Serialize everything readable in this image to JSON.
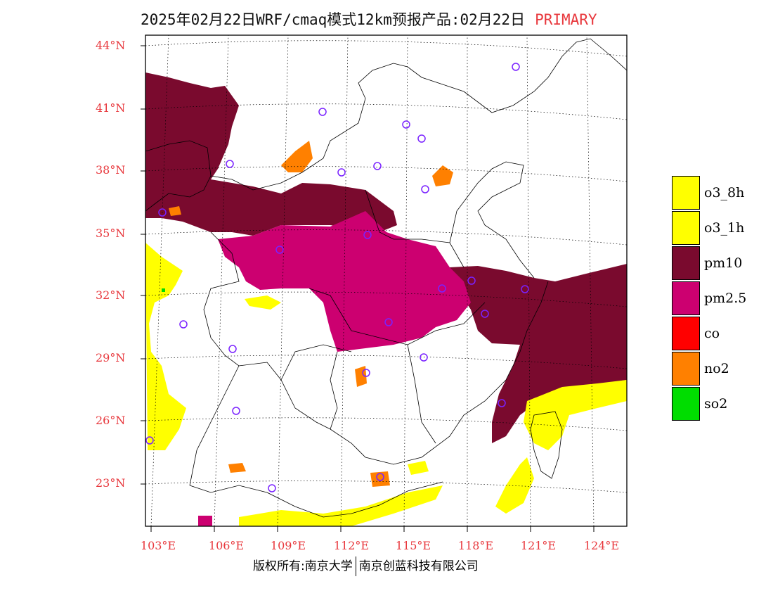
{
  "title": {
    "main": "2025年02月22日WRF/cmaq模式12km预报产品:02月22日",
    "tag": "PRIMARY"
  },
  "lat_labels": [
    "44°N",
    "41°N",
    "38°N",
    "35°N",
    "32°N",
    "29°N",
    "26°N",
    "23°N"
  ],
  "lon_labels": [
    "103°E",
    "106°E",
    "109°E",
    "112°E",
    "115°E",
    "118°E",
    "121°E",
    "124°E"
  ],
  "legend": [
    {
      "label": "o3_8h",
      "color": "#ffff00"
    },
    {
      "label": "o3_1h",
      "color": "#ffff00"
    },
    {
      "label": "pm10",
      "color": "#7a0a2e"
    },
    {
      "label": "pm2.5",
      "color": "#cc0070"
    },
    {
      "label": "co",
      "color": "#ff0000"
    },
    {
      "label": "no2",
      "color": "#ff8000"
    },
    {
      "label": "so2",
      "color": "#00dd00"
    }
  ],
  "footer": {
    "left": "版权所有:南京大学",
    "right": "南京创蓝科技有限公司"
  }
}
